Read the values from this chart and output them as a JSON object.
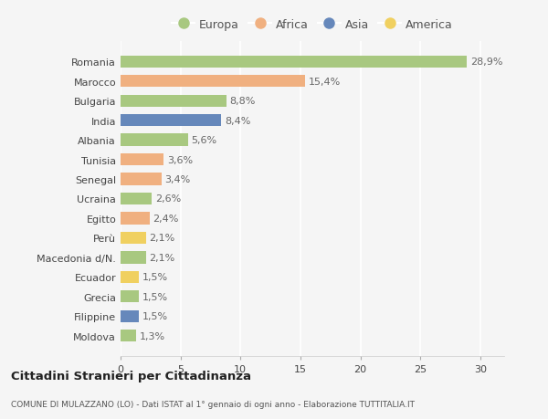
{
  "countries": [
    "Romania",
    "Marocco",
    "Bulgaria",
    "India",
    "Albania",
    "Tunisia",
    "Senegal",
    "Ucraina",
    "Egitto",
    "Perù",
    "Macedonia d/N.",
    "Ecuador",
    "Grecia",
    "Filippine",
    "Moldova"
  ],
  "values": [
    28.9,
    15.4,
    8.8,
    8.4,
    5.6,
    3.6,
    3.4,
    2.6,
    2.4,
    2.1,
    2.1,
    1.5,
    1.5,
    1.5,
    1.3
  ],
  "labels": [
    "28,9%",
    "15,4%",
    "8,8%",
    "8,4%",
    "5,6%",
    "3,6%",
    "3,4%",
    "2,6%",
    "2,4%",
    "2,1%",
    "2,1%",
    "1,5%",
    "1,5%",
    "1,5%",
    "1,3%"
  ],
  "continents": [
    "Europa",
    "Africa",
    "Europa",
    "Asia",
    "Europa",
    "Africa",
    "Africa",
    "Europa",
    "Africa",
    "America",
    "Europa",
    "America",
    "Europa",
    "Asia",
    "Europa"
  ],
  "colors": {
    "Europa": "#a8c880",
    "Africa": "#f0b080",
    "Asia": "#6688bb",
    "America": "#f0d060"
  },
  "legend_order": [
    "Europa",
    "Africa",
    "Asia",
    "America"
  ],
  "title": "Cittadini Stranieri per Cittadinanza",
  "subtitle": "COMUNE DI MULAZZANO (LO) - Dati ISTAT al 1° gennaio di ogni anno - Elaborazione TUTTITALIA.IT",
  "xlim": [
    0,
    32
  ],
  "xticks": [
    0,
    5,
    10,
    15,
    20,
    25,
    30
  ],
  "background_color": "#f5f5f5",
  "bar_height": 0.62,
  "grid_color": "#ffffff",
  "label_fontsize": 8,
  "tick_fontsize": 8,
  "label_color": "#666666"
}
